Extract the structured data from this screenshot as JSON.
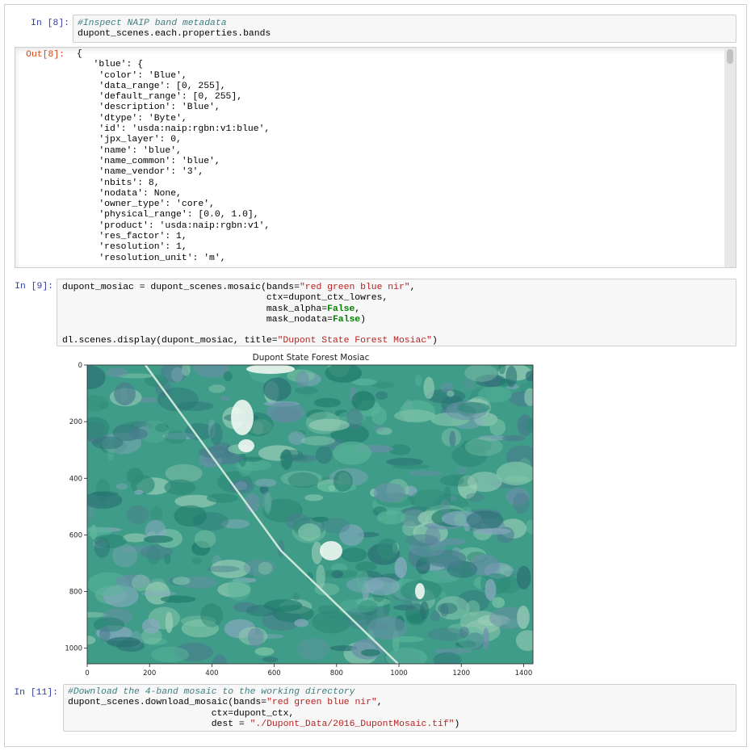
{
  "cells": [
    {
      "prompt": "In [8]:",
      "source": [
        [
          "#Inspect NAIP band metadata",
          "dupont_scenes.each.properties.bands"
        ]
      ],
      "output_prompt": "Out[8]:",
      "output": [
        "{",
        "   'blue': {",
        "    'color': 'Blue',",
        "    'data_range': [0, 255],",
        "    'default_range': [0, 255],",
        "    'description': 'Blue',",
        "    'dtype': 'Byte',",
        "    'id': 'usda:naip:rgbn:v1:blue',",
        "    'jpx_layer': 0,",
        "    'name': 'blue',",
        "    'name_common': 'blue',",
        "    'name_vendor': '3',",
        "    'nbits': 8,",
        "    'nodata': None,",
        "    'owner_type': 'core',",
        "    'physical_range': [0.0, 1.0],",
        "    'product': 'usda:naip:rgbn:v1',",
        "    'res_factor': 1,",
        "    'resolution': 1,",
        "    'resolution_unit': 'm',"
      ]
    },
    {
      "prompt": "In [9]:",
      "source": [
        [
          "dupont_mosiac = dupont_scenes.mosaic(bands=\"red green blue nir\",",
          "                                     ctx=dupont_ctx_lowres,",
          "                                     mask_alpha=False,",
          "                                     mask_nodata=False)"
        ],
        [
          "dl.scenes.display(dupont_mosiac, title=\"Dupont State Forest Mosiac\")"
        ]
      ],
      "plot": {
        "title": "Dupont State Forest Mosiac",
        "xlim": [
          0,
          1430
        ],
        "ylim": [
          1055,
          0
        ],
        "xticks": [
          0,
          200,
          400,
          600,
          800,
          1000,
          1200,
          1400
        ],
        "yticks": [
          0,
          200,
          400,
          600,
          800,
          1000
        ]
      }
    },
    {
      "prompt": "In [11]:",
      "source": [
        [
          "#Download the 4-band mosaic to the working directory",
          "dupont_scenes.download_mosaic(bands=\"red green blue nir\",",
          "                          ctx=dupont_ctx,",
          "                          dest = \"./Dupont_Data/2016_DupontMosaic.tif\")"
        ]
      ]
    }
  ]
}
